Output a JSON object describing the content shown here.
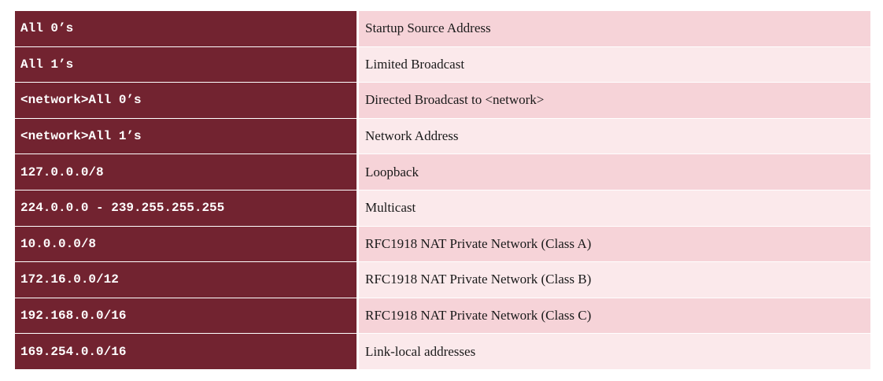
{
  "table": {
    "rows": [
      {
        "address": "All 0’s",
        "meaning": "Startup Source Address"
      },
      {
        "address": "All 1’s",
        "meaning": "Limited Broadcast"
      },
      {
        "address": "<network>All 0’s",
        "meaning": "Directed Broadcast to <network>"
      },
      {
        "address": "<network>All 1’s",
        "meaning": "Network Address"
      },
      {
        "address": "127.0.0.0/8",
        "meaning": "Loopback"
      },
      {
        "address": "224.0.0.0 - 239.255.255.255",
        "meaning": "Multicast"
      },
      {
        "address": "10.0.0.0/8",
        "meaning": "RFC1918 NAT Private Network (Class A)"
      },
      {
        "address": "172.16.0.0/12",
        "meaning": "RFC1918 NAT Private Network (Class B)"
      },
      {
        "address": "192.168.0.0/16",
        "meaning": "RFC1918 NAT Private Network (Class C)"
      },
      {
        "address": "169.254.0.0/16",
        "meaning": "Link-local addresses"
      }
    ]
  },
  "colors": {
    "left_bg": "#722330",
    "right_odd": "#f6d3d8",
    "right_even": "#fbe9eb"
  }
}
